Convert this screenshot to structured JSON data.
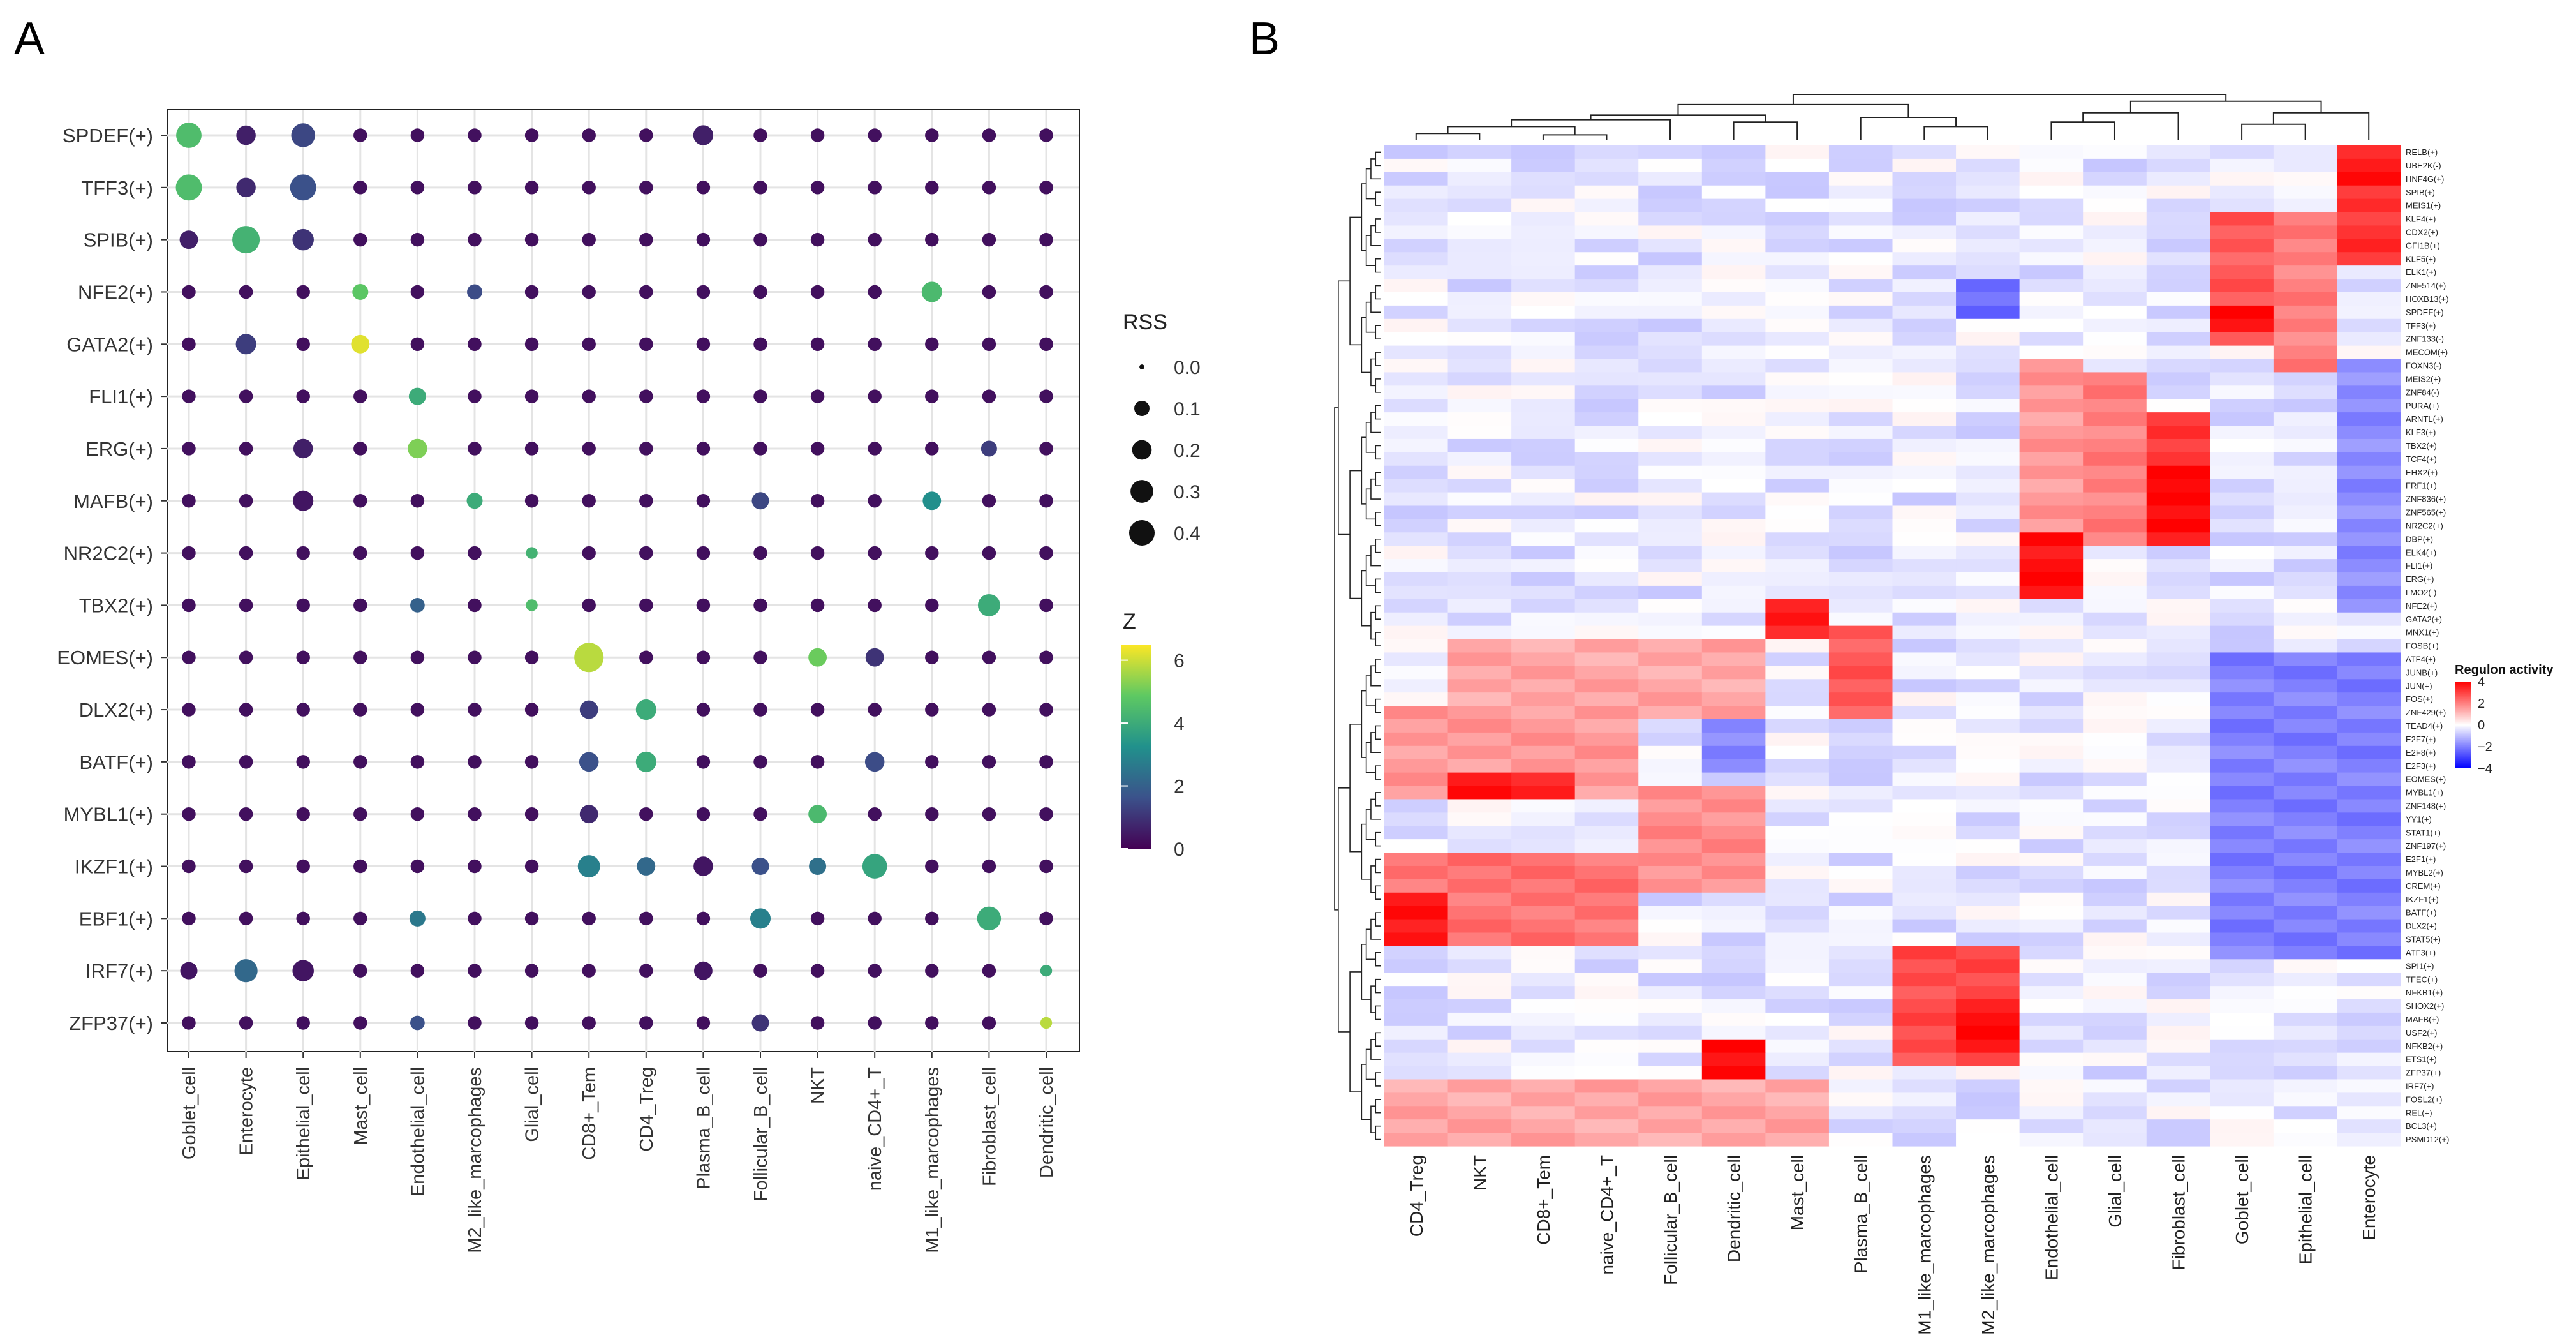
{
  "panels": {
    "a": "A",
    "b": "B"
  },
  "chart_data": [
    {
      "type": "scatter",
      "subtype": "dot-plot",
      "panel": "A",
      "rows": [
        "SPDEF(+)",
        "TFF3(+)",
        "SPIB(+)",
        "NFE2(+)",
        "GATA2(+)",
        "FLI1(+)",
        "ERG(+)",
        "MAFB(+)",
        "NR2C2(+)",
        "TBX2(+)",
        "EOMES(+)",
        "DLX2(+)",
        "BATF(+)",
        "MYBL1(+)",
        "IKZF1(+)",
        "EBF1(+)",
        "IRF7(+)",
        "ZFP37(+)"
      ],
      "columns": [
        "Goblet_cell",
        "Enterocyte",
        "Epithelial_cell",
        "Mast_cell",
        "Endothelial_cell",
        "M2_like_marcophages",
        "Glial_cell",
        "CD8+_Tem",
        "CD4_Treg",
        "Plasma_B_cell",
        "Follicular_B_cell",
        "NKT",
        "naive_CD4+_T",
        "M1_like_marcophages",
        "Fibroblast_cell",
        "Dendritic_cell"
      ],
      "highlights": [
        {
          "row": "SPDEF(+)",
          "col": "Goblet_cell",
          "rss": 0.28,
          "z": 4.5
        },
        {
          "row": "SPDEF(+)",
          "col": "Enterocyte",
          "rss": 0.14,
          "z": 0.6
        },
        {
          "row": "SPDEF(+)",
          "col": "Epithelial_cell",
          "rss": 0.24,
          "z": 1.4
        },
        {
          "row": "SPDEF(+)",
          "col": "Plasma_B_cell",
          "rss": 0.15,
          "z": 0.6
        },
        {
          "row": "TFF3(+)",
          "col": "Goblet_cell",
          "rss": 0.3,
          "z": 4.5
        },
        {
          "row": "TFF3(+)",
          "col": "Enterocyte",
          "rss": 0.14,
          "z": 0.8
        },
        {
          "row": "TFF3(+)",
          "col": "Epithelial_cell",
          "rss": 0.3,
          "z": 1.6
        },
        {
          "row": "SPIB(+)",
          "col": "Goblet_cell",
          "rss": 0.12,
          "z": 0.6
        },
        {
          "row": "SPIB(+)",
          "col": "Enterocyte",
          "rss": 0.34,
          "z": 4.2
        },
        {
          "row": "SPIB(+)",
          "col": "Epithelial_cell",
          "rss": 0.18,
          "z": 1.0
        },
        {
          "row": "NFE2(+)",
          "col": "Mast_cell",
          "rss": 0.08,
          "z": 4.8
        },
        {
          "row": "NFE2(+)",
          "col": "M2_like_marcophages",
          "rss": 0.07,
          "z": 1.5
        },
        {
          "row": "NFE2(+)",
          "col": "M1_like_marcophages",
          "rss": 0.16,
          "z": 4.4
        },
        {
          "row": "GATA2(+)",
          "col": "Enterocyte",
          "rss": 0.16,
          "z": 1.2
        },
        {
          "row": "GATA2(+)",
          "col": "Mast_cell",
          "rss": 0.12,
          "z": 6.2
        },
        {
          "row": "FLI1(+)",
          "col": "Endothelial_cell",
          "rss": 0.1,
          "z": 4.0
        },
        {
          "row": "ERG(+)",
          "col": "Epithelial_cell",
          "rss": 0.14,
          "z": 0.6
        },
        {
          "row": "ERG(+)",
          "col": "Endothelial_cell",
          "rss": 0.14,
          "z": 5.2
        },
        {
          "row": "ERG(+)",
          "col": "Fibroblast_cell",
          "rss": 0.08,
          "z": 1.2
        },
        {
          "row": "MAFB(+)",
          "col": "Epithelial_cell",
          "rss": 0.16,
          "z": 0.4
        },
        {
          "row": "MAFB(+)",
          "col": "M2_like_marcophages",
          "rss": 0.08,
          "z": 4.0
        },
        {
          "row": "MAFB(+)",
          "col": "Follicular_B_cell",
          "rss": 0.1,
          "z": 1.4
        },
        {
          "row": "MAFB(+)",
          "col": "M1_like_marcophages",
          "rss": 0.12,
          "z": 3.2
        },
        {
          "row": "NR2C2(+)",
          "col": "Glial_cell",
          "rss": 0.03,
          "z": 4.2
        },
        {
          "row": "TBX2(+)",
          "col": "Endothelial_cell",
          "rss": 0.06,
          "z": 2.0
        },
        {
          "row": "TBX2(+)",
          "col": "Glial_cell",
          "rss": 0.03,
          "z": 4.5
        },
        {
          "row": "TBX2(+)",
          "col": "Fibroblast_cell",
          "rss": 0.2,
          "z": 4.0
        },
        {
          "row": "EOMES(+)",
          "col": "CD8+_Tem",
          "rss": 0.4,
          "z": 5.8
        },
        {
          "row": "EOMES(+)",
          "col": "NKT",
          "rss": 0.12,
          "z": 5.0
        },
        {
          "row": "EOMES(+)",
          "col": "naive_CD4+_T",
          "rss": 0.12,
          "z": 1.0
        },
        {
          "row": "DLX2(+)",
          "col": "CD8+_Tem",
          "rss": 0.12,
          "z": 1.2
        },
        {
          "row": "DLX2(+)",
          "col": "CD4_Treg",
          "rss": 0.16,
          "z": 4.0
        },
        {
          "row": "BATF(+)",
          "col": "CD8+_Tem",
          "rss": 0.14,
          "z": 1.6
        },
        {
          "row": "BATF(+)",
          "col": "CD4_Treg",
          "rss": 0.16,
          "z": 4.0
        },
        {
          "row": "BATF(+)",
          "col": "naive_CD4+_T",
          "rss": 0.14,
          "z": 1.5
        },
        {
          "row": "MYBL1(+)",
          "col": "CD8+_Tem",
          "rss": 0.12,
          "z": 0.8
        },
        {
          "row": "MYBL1(+)",
          "col": "NKT",
          "rss": 0.12,
          "z": 4.4
        },
        {
          "row": "IKZF1(+)",
          "col": "CD8+_Tem",
          "rss": 0.2,
          "z": 2.8
        },
        {
          "row": "IKZF1(+)",
          "col": "CD4_Treg",
          "rss": 0.12,
          "z": 2.2
        },
        {
          "row": "IKZF1(+)",
          "col": "Plasma_B_cell",
          "rss": 0.14,
          "z": 0.4
        },
        {
          "row": "IKZF1(+)",
          "col": "Follicular_B_cell",
          "rss": 0.1,
          "z": 1.6
        },
        {
          "row": "IKZF1(+)",
          "col": "NKT",
          "rss": 0.1,
          "z": 2.4
        },
        {
          "row": "IKZF1(+)",
          "col": "naive_CD4+_T",
          "rss": 0.26,
          "z": 3.8
        },
        {
          "row": "EBF1(+)",
          "col": "Endothelial_cell",
          "rss": 0.08,
          "z": 2.6
        },
        {
          "row": "EBF1(+)",
          "col": "Follicular_B_cell",
          "rss": 0.16,
          "z": 2.8
        },
        {
          "row": "EBF1(+)",
          "col": "Fibroblast_cell",
          "rss": 0.24,
          "z": 4.0
        },
        {
          "row": "IRF7(+)",
          "col": "Goblet_cell",
          "rss": 0.1,
          "z": 0.4
        },
        {
          "row": "IRF7(+)",
          "col": "Enterocyte",
          "rss": 0.22,
          "z": 2.2
        },
        {
          "row": "IRF7(+)",
          "col": "Epithelial_cell",
          "rss": 0.18,
          "z": 0.4
        },
        {
          "row": "IRF7(+)",
          "col": "Plasma_B_cell",
          "rss": 0.12,
          "z": 0.4
        },
        {
          "row": "IRF7(+)",
          "col": "Dendritic_cell",
          "rss": 0.03,
          "z": 4.0
        },
        {
          "row": "ZFP37(+)",
          "col": "Endothelial_cell",
          "rss": 0.06,
          "z": 1.6
        },
        {
          "row": "ZFP37(+)",
          "col": "Follicular_B_cell",
          "rss": 0.1,
          "z": 1.0
        },
        {
          "row": "ZFP37(+)",
          "col": "Dendritic_cell",
          "rss": 0.03,
          "z": 5.8
        }
      ],
      "default_rss": 0.05,
      "default_z": 0.3,
      "size_legend": {
        "title": "RSS",
        "values": [
          0.0,
          0.1,
          0.2,
          0.3,
          0.4
        ],
        "labels": [
          "0.0",
          "0.1",
          "0.2",
          "0.3",
          "0.4"
        ]
      },
      "color_legend": {
        "title": "Z",
        "range": [
          0,
          6.5
        ],
        "ticks": [
          0,
          2,
          4,
          6
        ],
        "tick_labels": [
          "0",
          "2",
          "4",
          "6"
        ],
        "colors": [
          "#440154",
          "#3b528b",
          "#21918c",
          "#5ec962",
          "#fde725"
        ]
      },
      "grid": true
    },
    {
      "type": "heatmap",
      "panel": "B",
      "columns": [
        "CD4_Treg",
        "NKT",
        "CD8+_Tem",
        "naive_CD4+_T",
        "Follicular_B_cell",
        "Dendritic_cell",
        "Mast_cell",
        "Plasma_B_cell",
        "M1_like_marcophages",
        "M2_like_marcophages",
        "Endothelial_cell",
        "Glial_cell",
        "Fibroblast_cell",
        "Goblet_cell",
        "Epithelial_cell",
        "Enterocyte"
      ],
      "rows": [
        "RELB(+)",
        "UBE2K(-)",
        "HNF4G(+)",
        "SPIB(+)",
        "MEIS1(+)",
        "KLF4(+)",
        "CDX2(+)",
        "GFI1B(+)",
        "KLF5(+)",
        "ELK1(+)",
        "ZNF514(+)",
        "HOXB13(+)",
        "SPDEF(+)",
        "TFF3(+)",
        "ZNF133(-)",
        "MECOM(+)",
        "FOXN3(-)",
        "MEIS2(+)",
        "ZNF84(-)",
        "PURA(+)",
        "ARNTL(+)",
        "KLF3(+)",
        "TBX2(+)",
        "TCF4(+)",
        "EHX2(+)",
        "FRF1(+)",
        "ZNF836(+)",
        "ZNF565(+)",
        "NR2C2(+)",
        "DBP(+)",
        "ELK4(+)",
        "FLI1(+)",
        "ERG(+)",
        "LMO2(-)",
        "NFE2(+)",
        "GATA2(+)",
        "MNX1(+)",
        "FOSB(+)",
        "ATF4(+)",
        "JUNB(+)",
        "JUN(+)",
        "FOS(+)",
        "ZNF429(+)",
        "TEAD4(+)",
        "E2F7(+)",
        "E2F8(+)",
        "E2F3(+)",
        "EOMES(+)",
        "MYBL1(+)",
        "ZNF148(+)",
        "YY1(+)",
        "STAT1(+)",
        "ZNF197(+)",
        "E2F1(+)",
        "MYBL2(+)",
        "CREM(+)",
        "IKZF1(+)",
        "BATF(+)",
        "DLX2(+)",
        "STAT5(+)",
        "ATF3(+)",
        "SPI1(+)",
        "TFEC(+)",
        "NFKB1(+)",
        "SHOX2(+)",
        "MAFB(+)",
        "USF2(+)",
        "NFKB2(+)",
        "ETS1(+)",
        "ZFP37(+)",
        "IRF7(+)",
        "FOSL2(+)",
        "REL(+)",
        "BCL3(+)",
        "PSMD12(+)"
      ],
      "color_legend": {
        "title": "Regulon activity",
        "range": [
          -4,
          4
        ],
        "ticks": [
          4,
          2,
          0,
          -2,
          -4
        ],
        "tick_labels": [
          "4",
          "2",
          "0",
          "−2",
          "−4"
        ],
        "colors": [
          "#0000ff",
          "#ffffff",
          "#ff0000"
        ]
      },
      "high_blocks": [
        {
          "row_start": 0,
          "row_end": 2,
          "col_start": 15,
          "col_end": 15,
          "value": 3.6
        },
        {
          "row_start": 3,
          "row_end": 8,
          "col_start": 15,
          "col_end": 15,
          "value": 3.2
        },
        {
          "row_start": 5,
          "row_end": 14,
          "col_start": 13,
          "col_end": 13,
          "value": 2.6
        },
        {
          "row_start": 5,
          "row_end": 16,
          "col_start": 14,
          "col_end": 14,
          "value": 2.0
        },
        {
          "row_start": 12,
          "row_end": 13,
          "col_start": 13,
          "col_end": 13,
          "value": 4.0
        },
        {
          "row_start": 16,
          "row_end": 30,
          "col_start": 10,
          "col_end": 10,
          "value": 1.6
        },
        {
          "row_start": 17,
          "row_end": 29,
          "col_start": 11,
          "col_end": 11,
          "value": 2.0
        },
        {
          "row_start": 20,
          "row_end": 29,
          "col_start": 12,
          "col_end": 12,
          "value": 3.2
        },
        {
          "row_start": 24,
          "row_end": 28,
          "col_start": 12,
          "col_end": 12,
          "value": 4.0
        },
        {
          "row_start": 29,
          "row_end": 33,
          "col_start": 10,
          "col_end": 10,
          "value": 3.8
        },
        {
          "row_start": 34,
          "row_end": 36,
          "col_start": 6,
          "col_end": 6,
          "value": 3.6
        },
        {
          "row_start": 36,
          "row_end": 42,
          "col_start": 7,
          "col_end": 7,
          "value": 2.6
        },
        {
          "row_start": 37,
          "row_end": 42,
          "col_start": 1,
          "col_end": 5,
          "value": 1.4
        },
        {
          "row_start": 42,
          "row_end": 48,
          "col_start": 0,
          "col_end": 3,
          "value": 1.6
        },
        {
          "row_start": 47,
          "row_end": 48,
          "col_start": 1,
          "col_end": 2,
          "value": 3.6
        },
        {
          "row_start": 48,
          "row_end": 55,
          "col_start": 4,
          "col_end": 5,
          "value": 1.8
        },
        {
          "row_start": 53,
          "row_end": 59,
          "col_start": 0,
          "col_end": 3,
          "value": 2.2
        },
        {
          "row_start": 56,
          "row_end": 59,
          "col_start": 0,
          "col_end": 0,
          "value": 3.6
        },
        {
          "row_start": 60,
          "row_end": 68,
          "col_start": 8,
          "col_end": 9,
          "value": 2.8
        },
        {
          "row_start": 64,
          "row_end": 67,
          "col_start": 9,
          "col_end": 9,
          "value": 3.8
        },
        {
          "row_start": 67,
          "row_end": 70,
          "col_start": 5,
          "col_end": 5,
          "value": 3.8
        },
        {
          "row_start": 70,
          "row_end": 74,
          "col_start": 0,
          "col_end": 6,
          "value": 1.4
        }
      ],
      "low_blocks": [
        {
          "row_start": 16,
          "row_end": 34,
          "col_start": 15,
          "col_end": 15,
          "value": -1.8
        },
        {
          "row_start": 38,
          "row_end": 60,
          "col_start": 13,
          "col_end": 15,
          "value": -2.0
        },
        {
          "row_start": 10,
          "row_end": 12,
          "col_start": 9,
          "col_end": 9,
          "value": -2.4
        },
        {
          "row_start": 42,
          "row_end": 46,
          "col_start": 5,
          "col_end": 5,
          "value": -1.8
        }
      ]
    }
  ]
}
